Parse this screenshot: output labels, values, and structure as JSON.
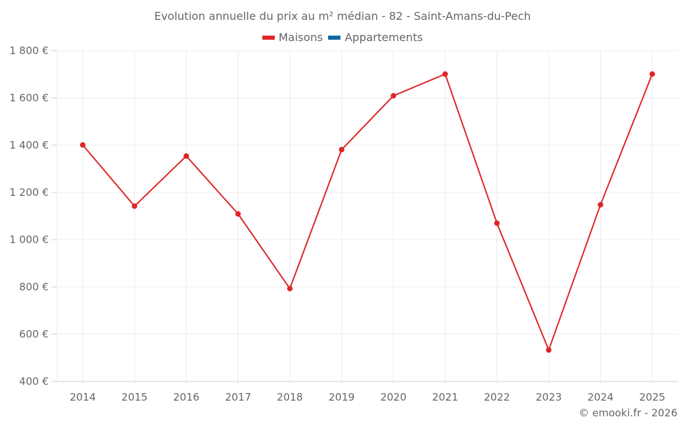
{
  "chart_data": {
    "type": "line",
    "title": "Evolution annuelle du prix au m² médian - 82 - Saint-Amans-du-Pech",
    "xlabel": "",
    "ylabel": "",
    "categories": [
      "2014",
      "2015",
      "2016",
      "2017",
      "2018",
      "2019",
      "2020",
      "2021",
      "2022",
      "2023",
      "2024",
      "2025"
    ],
    "series": [
      {
        "name": "Maisons",
        "color": "#dd2626",
        "values": [
          1401,
          1142,
          1354,
          1109,
          793,
          1381,
          1609,
          1701,
          1070,
          533,
          1148,
          1701
        ]
      },
      {
        "name": "Appartements",
        "color": "#0f6aa4",
        "values": []
      }
    ],
    "ylim": [
      400,
      1800
    ],
    "yticks": [
      400,
      600,
      800,
      1000,
      1200,
      1400,
      1600,
      1800
    ],
    "ytick_labels": [
      "400 €",
      "600 €",
      "800 €",
      "1 000 €",
      "1 200 €",
      "1 400 €",
      "1 600 €",
      "1 800 €"
    ],
    "grid": true,
    "legend_position": "top"
  },
  "legend": [
    {
      "label": "Maisons",
      "color": "#dd2626"
    },
    {
      "label": "Appartements",
      "color": "#0f6aa4"
    }
  ],
  "credit": "© emooki.fr - 2026"
}
